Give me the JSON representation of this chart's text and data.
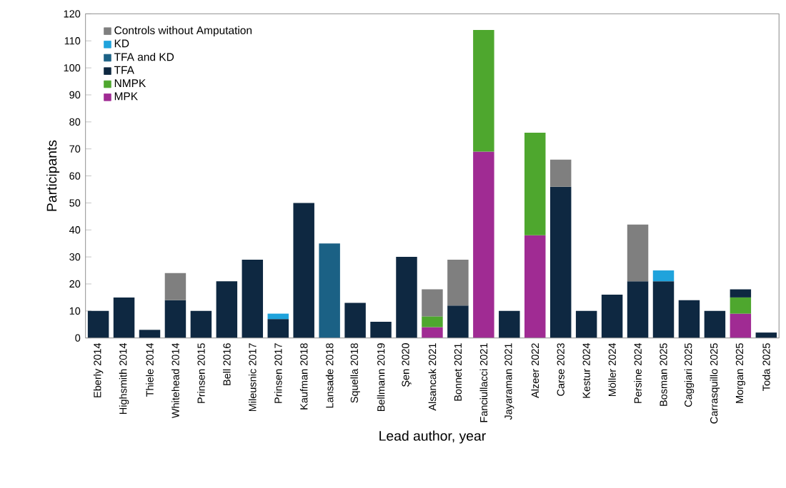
{
  "chart_data": {
    "type": "bar",
    "stacked": true,
    "xlabel": "Lead author, year",
    "ylabel": "Participants",
    "categories": [
      "Eberly 2014",
      "Highsmith 2014",
      "Thiele 2014",
      "Whitehead 2014",
      "Prinsen 2015",
      "Bell 2016",
      "Mileusnic 2017",
      "Prinsen 2017",
      "Kaufman 2018",
      "Lansade 2018",
      "Squella 2018",
      "Bellmann 2019",
      "Şen 2020",
      "Alsancak 2021",
      "Bonnet 2021",
      "Fanciullacci 2021",
      "Jayaraman 2021",
      "Alzeer 2022",
      "Carse 2023",
      "Kestur 2024",
      "Möller 2024",
      "Persine 2024",
      "Bosman 2025",
      "Caggiari 2025",
      "Carrasquillo 2025",
      "Morgan 2025",
      "Toda 2025"
    ],
    "series": [
      {
        "name": "MPK",
        "color": "#a02b93",
        "values": [
          null,
          null,
          null,
          null,
          null,
          null,
          null,
          null,
          null,
          null,
          null,
          null,
          null,
          4,
          null,
          69,
          null,
          38,
          null,
          null,
          null,
          null,
          null,
          null,
          null,
          9,
          null
        ]
      },
      {
        "name": "NMPK",
        "color": "#4ea72e",
        "values": [
          null,
          null,
          null,
          null,
          null,
          null,
          null,
          null,
          null,
          null,
          null,
          null,
          null,
          4,
          null,
          45,
          null,
          38,
          null,
          null,
          null,
          null,
          null,
          null,
          null,
          6,
          null
        ]
      },
      {
        "name": "TFA",
        "color": "#0e2841",
        "values": [
          10,
          15,
          3,
          14,
          10,
          21,
          29,
          7,
          50,
          null,
          13,
          6,
          30,
          null,
          12,
          null,
          10,
          null,
          56,
          10,
          16,
          21,
          21,
          14,
          10,
          3,
          2
        ]
      },
      {
        "name": "TFA and KD",
        "color": "#1b6185",
        "values": [
          null,
          null,
          null,
          null,
          null,
          null,
          null,
          null,
          null,
          35,
          null,
          null,
          null,
          null,
          null,
          null,
          null,
          null,
          null,
          null,
          null,
          null,
          null,
          null,
          null,
          null,
          null
        ]
      },
      {
        "name": "KD",
        "color": "#1fa3dc",
        "values": [
          null,
          null,
          null,
          null,
          null,
          null,
          null,
          2,
          null,
          null,
          null,
          null,
          null,
          null,
          null,
          null,
          null,
          null,
          null,
          null,
          null,
          null,
          4,
          null,
          null,
          null,
          null
        ]
      },
      {
        "name": "Controls without Amputation",
        "color": "#7f7f7f",
        "values": [
          null,
          null,
          null,
          10,
          null,
          null,
          null,
          null,
          null,
          null,
          null,
          null,
          null,
          10,
          17,
          null,
          null,
          null,
          10,
          null,
          null,
          21,
          null,
          null,
          null,
          null,
          null
        ]
      }
    ],
    "ylim": [
      0,
      120
    ],
    "yticks": [
      0,
      10,
      20,
      30,
      40,
      50,
      60,
      70,
      80,
      90,
      100,
      110,
      120
    ],
    "grid": false,
    "legend": "top left"
  }
}
